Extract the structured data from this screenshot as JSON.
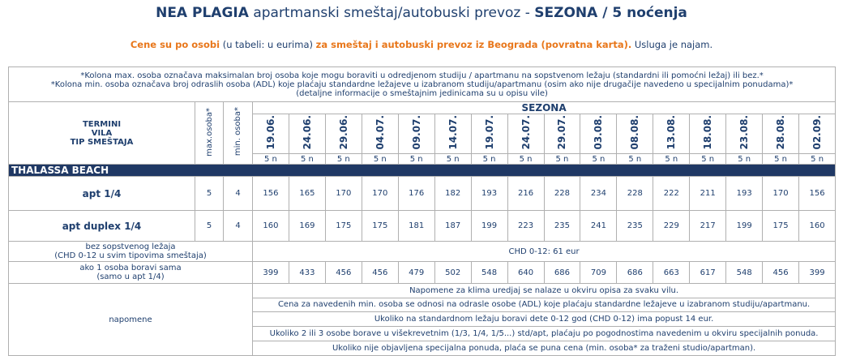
{
  "header": {
    "title": {
      "bold1": "NEA PLAGIA",
      "normal": "apartmanski smeštaj/autobuski prevoz -",
      "bold2": "SEZONA / 5 noćenja"
    },
    "subtitle": {
      "orange1": "Cene su po osobi",
      "normal1": "(u tabeli: u eurima)",
      "orange2": "za smeštaj i autobuski prevoz iz Beograda (povratna karta).",
      "normal2": "Usluga je najam."
    }
  },
  "table": {
    "notes": [
      "*Kolona max. osoba označava maksimalan broj osoba koje mogu boraviti u odredjenom studiju / apartmanu na sopstvenom ležaju (standardni ili pomoćni ležaj) ili bez.*",
      "*Kolona min. osoba označava broj odraslih osoba (ADL) koje plaćaju standardne ležajeve u izabranom studiju/apartmanu (osim ako nije drugačije navedeno u specijalnim ponudama)*",
      "(detaljne informacije o smeštajnim jedinicama su u opisu vile)"
    ],
    "head_labels": [
      "TERMINI",
      "VILA",
      "TIP SMEŠTAJA"
    ],
    "max_label": "max.osoba*",
    "min_label": "min. osoba*",
    "season": "SEZONA",
    "dates": [
      "19.06.",
      "24.06.",
      "29.06.",
      "04.07.",
      "09.07.",
      "14.07.",
      "19.07.",
      "24.07.",
      "29.07.",
      "03.08.",
      "08.08.",
      "13.08.",
      "18.08.",
      "23.08.",
      "28.08.",
      "02.09."
    ],
    "nights": [
      "5 n",
      "5 n",
      "5 n",
      "5 n",
      "5 n",
      "5 n",
      "5 n",
      "5 n",
      "5 n",
      "5 n",
      "5 n",
      "5 n",
      "5 n",
      "5 n",
      "5 n",
      "5 n"
    ],
    "section": "THALASSA BEACH",
    "rows": [
      {
        "name": "apt 1/4",
        "max": 5,
        "min": 4,
        "prices": [
          156,
          165,
          170,
          170,
          176,
          182,
          193,
          216,
          228,
          234,
          228,
          222,
          211,
          193,
          170,
          156
        ]
      },
      {
        "name": "apt duplex 1/4",
        "max": 5,
        "min": 4,
        "prices": [
          160,
          169,
          175,
          175,
          181,
          187,
          199,
          223,
          235,
          241,
          235,
          229,
          217,
          199,
          175,
          160
        ]
      }
    ],
    "child": {
      "label": [
        "bez sopstvenog ležaja",
        "(CHD 0-12 u svim tipovima smeštaja)"
      ],
      "text": "CHD 0-12: 61 eur"
    },
    "single": {
      "label": [
        "ako 1 osoba boravi sama",
        "(samo u apt 1/4)"
      ],
      "prices": [
        399,
        433,
        456,
        456,
        479,
        502,
        548,
        640,
        686,
        709,
        686,
        663,
        617,
        548,
        456,
        399
      ]
    },
    "remarks": {
      "label": "napomene",
      "lines": [
        "Napomene za klima uredjaj se nalaze u okviru opisa za svaku vilu.",
        "Cena za  navedenih min. osoba se odnosi na odrasle osobe (ADL) koje plaćaju standardne ležajeve u izabranom studiju/apartmanu.",
        "Ukoliko na standardnom ležaju boravi dete 0-12 god (CHD 0-12) ima popust 14 eur.",
        "Ukoliko 2 ili 3 osobe borave u višekrevetnim (1/3, 1/4, 1/5...) std/apt, plaćaju po pogodnostima navedenim u okviru specijalnih ponuda.",
        "Ukoliko nije objavljena specijalna ponuda, plaća se puna cena (min. osoba* za traženi studio/apartman)."
      ]
    }
  }
}
